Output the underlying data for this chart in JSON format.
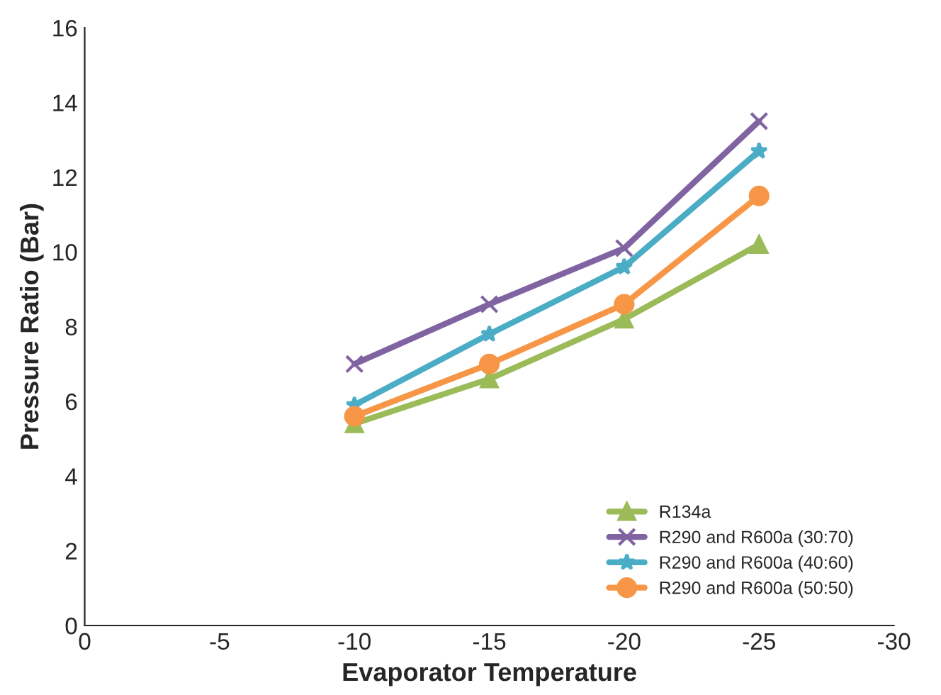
{
  "chart_data": {
    "type": "line",
    "xlabel": "Evaporator Temperature",
    "ylabel": "Pressure Ratio (Bar)",
    "xlim": [
      0,
      -30
    ],
    "xticks": [
      0,
      -5,
      -10,
      -15,
      -20,
      -25,
      -30
    ],
    "ylim": [
      0,
      16
    ],
    "yticks": [
      0,
      2,
      4,
      6,
      8,
      10,
      12,
      14,
      16
    ],
    "x": [
      -10,
      -15,
      -20,
      -25
    ],
    "grid": false,
    "legend": "bottom right",
    "series": [
      {
        "name": "R134a",
        "color": "#9bbb59",
        "marker": "triangle",
        "values": [
          5.4,
          6.6,
          8.2,
          10.2
        ]
      },
      {
        "name": "R290 and R600a (30:70)",
        "color": "#8064a2",
        "marker": "cross",
        "values": [
          7.0,
          8.6,
          10.1,
          13.5
        ]
      },
      {
        "name": "R290 and R600a (40:60)",
        "color": "#4bacc6",
        "marker": "star",
        "values": [
          5.9,
          7.8,
          9.6,
          12.7
        ]
      },
      {
        "name": "R290 and R600a (50:50)",
        "color": "#f79646",
        "marker": "circle",
        "values": [
          5.6,
          7.0,
          8.6,
          11.5
        ]
      }
    ]
  }
}
